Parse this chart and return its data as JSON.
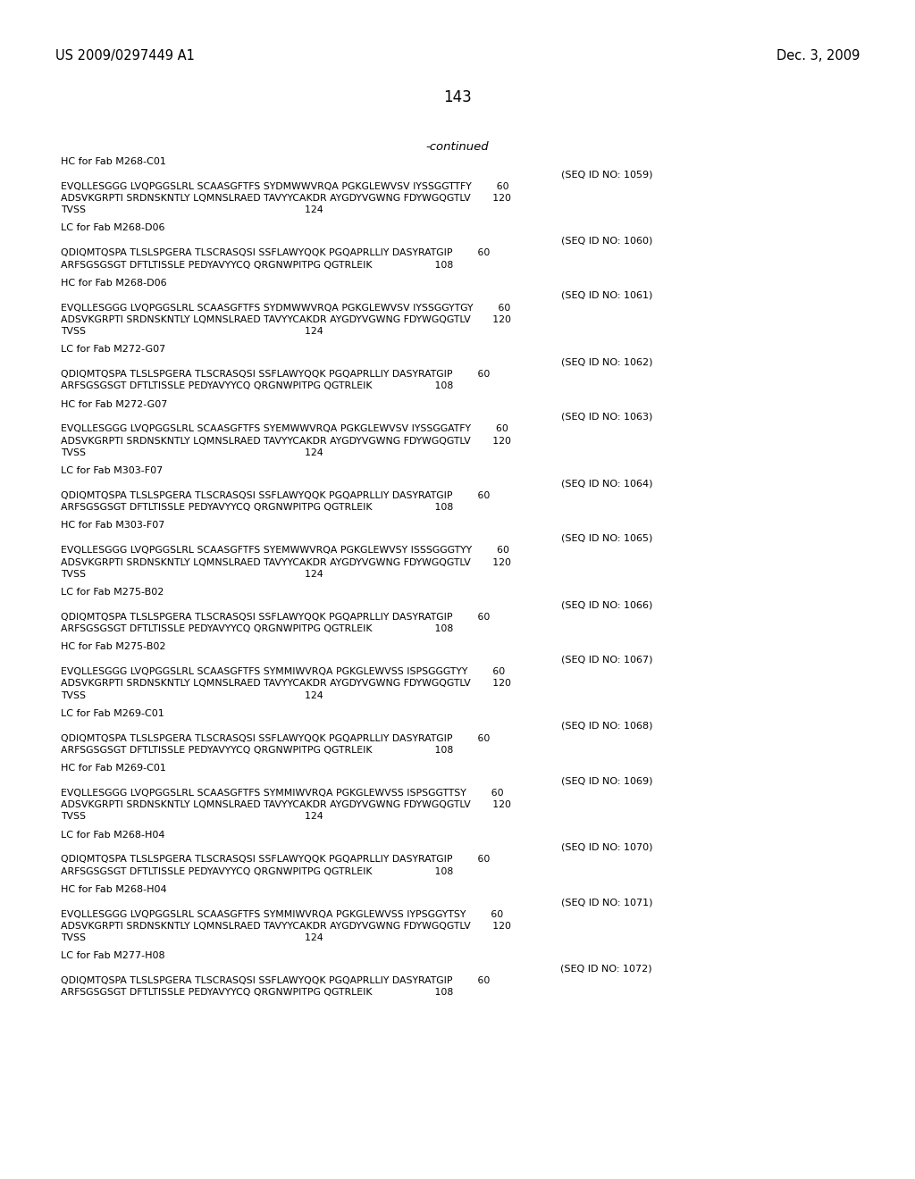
{
  "bg_color": "#ffffff",
  "header_left": "US 2009/0297449 A1",
  "header_right": "Dec. 3, 2009",
  "page_number": "143",
  "continued": "-continued",
  "sections": [
    {
      "label": "HC for Fab M268-C01",
      "seq_id": "(SEQ ID NO: 1059)",
      "lines": [
        "EVQLLESGGG LVQPGGSLRL SCAASGFTFS SYDMWWVRQA PGKGLEWVSV IYSSGGTTFY        60",
        "ADSVKGRPTI SRDNSKNTLY LQMNSLRAED TAVYYCAKDR AYGDYVGWNG FDYWGQGTLV       120",
        "TVSS                                                                      124"
      ]
    },
    {
      "label": "LC for Fab M268-D06",
      "seq_id": "(SEQ ID NO: 1060)",
      "lines": [
        "QDIQMTQSPA TLSLSPGERA TLSCRASQSI SSFLAWYQQK PGQAPRLLIY DASYRATGIP        60",
        "ARFSGSGSGT DFTLTISSLE PEDYAVYYCQ QRGNWPITPG QGTRLEIK                    108"
      ]
    },
    {
      "label": "HC for Fab M268-D06",
      "seq_id": "(SEQ ID NO: 1061)",
      "lines": [
        "EVQLLESGGG LVQPGGSLRL SCAASGFTFS SYDMWWVRQA PGKGLEWVSV IYSSGGYTGY        60",
        "ADSVKGRPTI SRDNSKNTLY LQMNSLRAED TAVYYCAKDR AYGDYVGWNG FDYWGQGTLV       120",
        "TVSS                                                                      124"
      ]
    },
    {
      "label": "LC for Fab M272-G07",
      "seq_id": "(SEQ ID NO: 1062)",
      "lines": [
        "QDIQMTQSPA TLSLSPGERA TLSCRASQSI SSFLAWYQQK PGQAPRLLIY DASYRATGIP        60",
        "ARFSGSGSGT DFTLTISSLE PEDYAVYYCQ QRGNWPITPG QGTRLEIK                    108"
      ]
    },
    {
      "label": "HC for Fab M272-G07",
      "seq_id": "(SEQ ID NO: 1063)",
      "lines": [
        "EVQLLESGGG LVQPGGSLRL SCAASGFTFS SYEMWWVRQA PGKGLEWVSV IYSSGGATFY        60",
        "ADSVKGRPTI SRDNSKNTLY LQMNSLRAED TAVYYCAKDR AYGDYVGWNG FDYWGQGTLV       120",
        "TVSS                                                                      124"
      ]
    },
    {
      "label": "LC for Fab M303-F07",
      "seq_id": "(SEQ ID NO: 1064)",
      "lines": [
        "QDIQMTQSPA TLSLSPGERA TLSCRASQSI SSFLAWYQQK PGQAPRLLIY DASYRATGIP        60",
        "ARFSGSGSGT DFTLTISSLE PEDYAVYYCQ QRGNWPITPG QGTRLEIK                    108"
      ]
    },
    {
      "label": "HC for Fab M303-F07",
      "seq_id": "(SEQ ID NO: 1065)",
      "lines": [
        "EVQLLESGGG LVQPGGSLRL SCAASGFTFS SYEMWWVRQA PGKGLEWVSY ISSSGGGTYY        60",
        "ADSVKGRPTI SRDNSKNTLY LQMNSLRAED TAVYYCAKDR AYGDYVGWNG FDYWGQGTLV       120",
        "TVSS                                                                      124"
      ]
    },
    {
      "label": "LC for Fab M275-B02",
      "seq_id": "(SEQ ID NO: 1066)",
      "lines": [
        "QDIQMTQSPA TLSLSPGERA TLSCRASQSI SSFLAWYQQK PGQAPRLLIY DASYRATGIP        60",
        "ARFSGSGSGT DFTLTISSLE PEDYAVYYCQ QRGNWPITPG QGTRLEIK                    108"
      ]
    },
    {
      "label": "HC for Fab M275-B02",
      "seq_id": "(SEQ ID NO: 1067)",
      "lines": [
        "EVQLLESGGG LVQPGGSLRL SCAASGFTFS SYMMIWVRQA PGKGLEWVSS ISPSGGGTYY        60",
        "ADSVKGRPTI SRDNSKNTLY LQMNSLRAED TAVYYCAKDR AYGDYVGWNG FDYWGQGTLV       120",
        "TVSS                                                                      124"
      ]
    },
    {
      "label": "LC for Fab M269-C01",
      "seq_id": "(SEQ ID NO: 1068)",
      "lines": [
        "QDIQMTQSPA TLSLSPGERA TLSCRASQSI SSFLAWYQQK PGQAPRLLIY DASYRATGIP        60",
        "ARFSGSGSGT DFTLTISSLE PEDYAVYYCQ QRGNWPITPG QGTRLEIK                    108"
      ]
    },
    {
      "label": "HC for Fab M269-C01",
      "seq_id": "(SEQ ID NO: 1069)",
      "lines": [
        "EVQLLESGGG LVQPGGSLRL SCAASGFTFS SYMMIWVRQA PGKGLEWVSS ISPSGGTTSY        60",
        "ADSVKGRPTI SRDNSKNTLY LQMNSLRAED TAVYYCAKDR AYGDYVGWNG FDYWGQGTLV       120",
        "TVSS                                                                      124"
      ]
    },
    {
      "label": "LC for Fab M268-H04",
      "seq_id": "(SEQ ID NO: 1070)",
      "lines": [
        "QDIQMTQSPA TLSLSPGERA TLSCRASQSI SSFLAWYQQK PGQAPRLLIY DASYRATGIP        60",
        "ARFSGSGSGT DFTLTISSLE PEDYAVYYCQ QRGNWPITPG QGTRLEIK                    108"
      ]
    },
    {
      "label": "HC for Fab M268-H04",
      "seq_id": "(SEQ ID NO: 1071)",
      "lines": [
        "EVQLLESGGG LVQPGGSLRL SCAASGFTFS SYMMIWVRQA PGKGLEWVSS IYPSGGYTSY        60",
        "ADSVKGRPTI SRDNSKNTLY LQMNSLRAED TAVYYCAKDR AYGDYVGWNG FDYWGQGTLV       120",
        "TVSS                                                                      124"
      ]
    },
    {
      "label": "LC for Fab M277-H08",
      "seq_id": "(SEQ ID NO: 1072)",
      "lines": [
        "QDIQMTQSPA TLSLSPGERA TLSCRASQSI SSFLAWYQQK PGQAPRLLIY DASYRATGIP        60",
        "ARFSGSGSGT DFTLTISSLE PEDYAVYYCQ QRGNWPITPG QGTRLEIK                    108"
      ]
    }
  ]
}
